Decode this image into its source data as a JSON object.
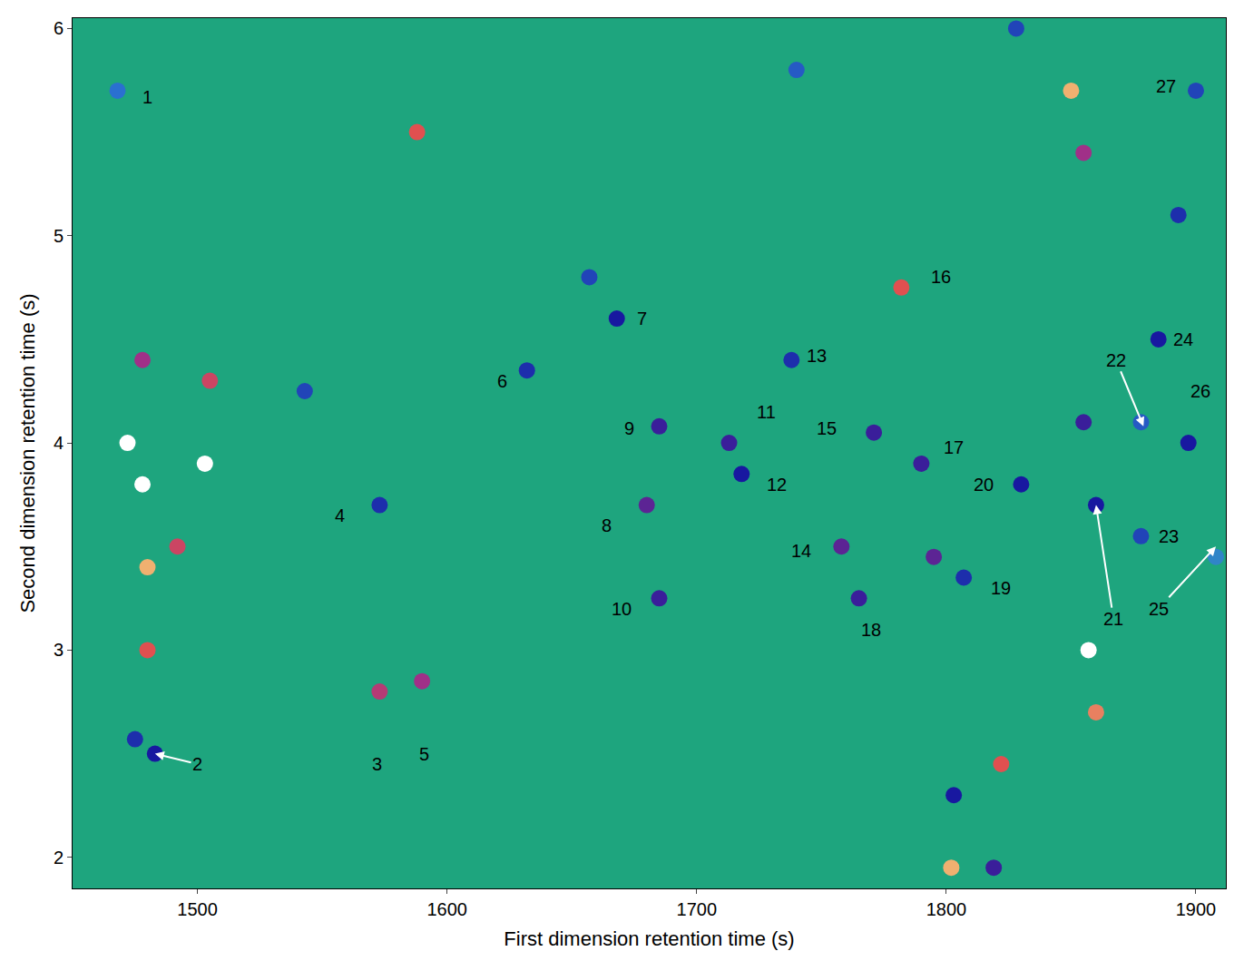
{
  "chart_data": {
    "type": "scatter",
    "marker": "circle",
    "x_label": "First dimension retention time (s)",
    "y_label": "Second dimension retention time (s)",
    "xlim": [
      1450,
      1912
    ],
    "xticks": [
      1500,
      1600,
      1700,
      1800,
      1900
    ],
    "ylim": [
      1.85,
      6.05
    ],
    "yticks": [
      2,
      3,
      4,
      5,
      6
    ],
    "grid": false,
    "intensity_range": [
      0,
      100
    ],
    "peaks": {
      "x": [
        1478,
        1472,
        1480,
        1480,
        1478,
        1503,
        1505,
        1492,
        1468,
        1475,
        1483,
        1543,
        1573,
        1573,
        1590,
        1588,
        1632,
        1657,
        1668,
        1685,
        1680,
        1685,
        1713,
        1718,
        1738,
        1740,
        1758,
        1765,
        1771,
        1782,
        1790,
        1795,
        1807,
        1830,
        1803,
        1802,
        1822,
        1819,
        1828,
        1850,
        1855,
        1855,
        1860,
        1857,
        1860,
        1878,
        1878,
        1885,
        1893,
        1897,
        1900,
        1908
      ],
      "y": [
        3.8,
        4.0,
        3.4,
        3.0,
        4.4,
        3.9,
        4.3,
        3.5,
        5.7,
        2.57,
        2.5,
        4.25,
        3.7,
        2.8,
        2.85,
        5.5,
        4.35,
        4.8,
        4.6,
        4.08,
        3.7,
        3.25,
        4.0,
        3.85,
        4.4,
        5.8,
        3.5,
        3.25,
        4.05,
        4.75,
        3.9,
        3.45,
        3.35,
        3.8,
        2.3,
        1.95,
        2.45,
        1.95,
        6.0,
        5.7,
        5.4,
        4.1,
        3.7,
        3.0,
        2.7,
        4.1,
        3.55,
        4.5,
        5.1,
        4.0,
        5.7,
        3.45
      ],
      "intensity": [
        100,
        100,
        85,
        75,
        60,
        100,
        70,
        70,
        20,
        35,
        40,
        30,
        35,
        65,
        60,
        75,
        35,
        30,
        40,
        45,
        50,
        45,
        45,
        40,
        35,
        25,
        50,
        45,
        45,
        75,
        45,
        50,
        35,
        40,
        40,
        85,
        75,
        45,
        30,
        85,
        60,
        45,
        40,
        100,
        80,
        25,
        30,
        40,
        35,
        40,
        30,
        15
      ]
    },
    "annotations": [
      {
        "text": "1",
        "x": 1480,
        "y": 5.67
      },
      {
        "text": "2",
        "x": 1500,
        "y": 2.45,
        "target": [
          1483,
          2.5
        ]
      },
      {
        "text": "3",
        "x": 1572,
        "y": 2.45
      },
      {
        "text": "4",
        "x": 1557,
        "y": 3.65
      },
      {
        "text": "5",
        "x": 1591,
        "y": 2.5
      },
      {
        "text": "6",
        "x": 1622,
        "y": 4.3
      },
      {
        "text": "7",
        "x": 1678,
        "y": 4.6
      },
      {
        "text": "8",
        "x": 1664,
        "y": 3.6
      },
      {
        "text": "9",
        "x": 1673,
        "y": 4.07
      },
      {
        "text": "10",
        "x": 1670,
        "y": 3.2
      },
      {
        "text": "11",
        "x": 1728,
        "y": 4.15
      },
      {
        "text": "12",
        "x": 1732,
        "y": 3.8
      },
      {
        "text": "13",
        "x": 1748,
        "y": 4.42
      },
      {
        "text": "14",
        "x": 1742,
        "y": 3.48
      },
      {
        "text": "15",
        "x": 1752,
        "y": 4.07
      },
      {
        "text": "16",
        "x": 1798,
        "y": 4.8
      },
      {
        "text": "17",
        "x": 1803,
        "y": 3.98
      },
      {
        "text": "18",
        "x": 1770,
        "y": 3.1
      },
      {
        "text": "19",
        "x": 1822,
        "y": 3.3
      },
      {
        "text": "20",
        "x": 1815,
        "y": 3.8
      },
      {
        "text": "21",
        "x": 1867,
        "y": 3.15,
        "target": [
          1860,
          3.7
        ]
      },
      {
        "text": "22",
        "x": 1868,
        "y": 4.4,
        "target": [
          1879,
          4.08
        ]
      },
      {
        "text": "23",
        "x": 1889,
        "y": 3.55
      },
      {
        "text": "24",
        "x": 1895,
        "y": 4.5
      },
      {
        "text": "25",
        "x": 1885,
        "y": 3.2,
        "target": [
          1908,
          3.5
        ]
      },
      {
        "text": "26",
        "x": 1902,
        "y": 4.25
      },
      {
        "text": "27",
        "x": 1888,
        "y": 5.72
      }
    ]
  }
}
